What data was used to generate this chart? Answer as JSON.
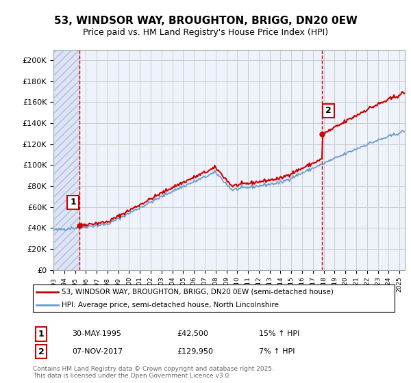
{
  "title": "53, WINDSOR WAY, BROUGHTON, BRIGG, DN20 0EW",
  "subtitle": "Price paid vs. HM Land Registry's House Price Index (HPI)",
  "legend_line1": "53, WINDSOR WAY, BROUGHTON, BRIGG, DN20 0EW (semi-detached house)",
  "legend_line2": "HPI: Average price, semi-detached house, North Lincolnshire",
  "footer": "Contains HM Land Registry data © Crown copyright and database right 2025.\nThis data is licensed under the Open Government Licence v3.0.",
  "sale1_date": "30-MAY-1995",
  "sale1_price": 42500,
  "sale1_label": "15% ↑ HPI",
  "sale2_date": "07-NOV-2017",
  "sale2_price": 129950,
  "sale2_label": "7% ↑ HPI",
  "sale1_x": 1995.41,
  "sale2_x": 2017.84,
  "ylim": [
    0,
    210000
  ],
  "xlim_start": 1993,
  "xlim_end": 2025.5,
  "price_color": "#cc0000",
  "hpi_color": "#6699cc",
  "background_color": "#eef2fa",
  "hatch_facecolor": "#dde4f5",
  "hatch_edgecolor": "#b0bcd8",
  "grid_color": "#cccccc",
  "yticks": [
    0,
    20000,
    40000,
    60000,
    80000,
    100000,
    120000,
    140000,
    160000,
    180000,
    200000
  ],
  "ytick_labels": [
    "£0",
    "£20K",
    "£40K",
    "£60K",
    "£80K",
    "£100K",
    "£120K",
    "£140K",
    "£160K",
    "£180K",
    "£200K"
  ]
}
